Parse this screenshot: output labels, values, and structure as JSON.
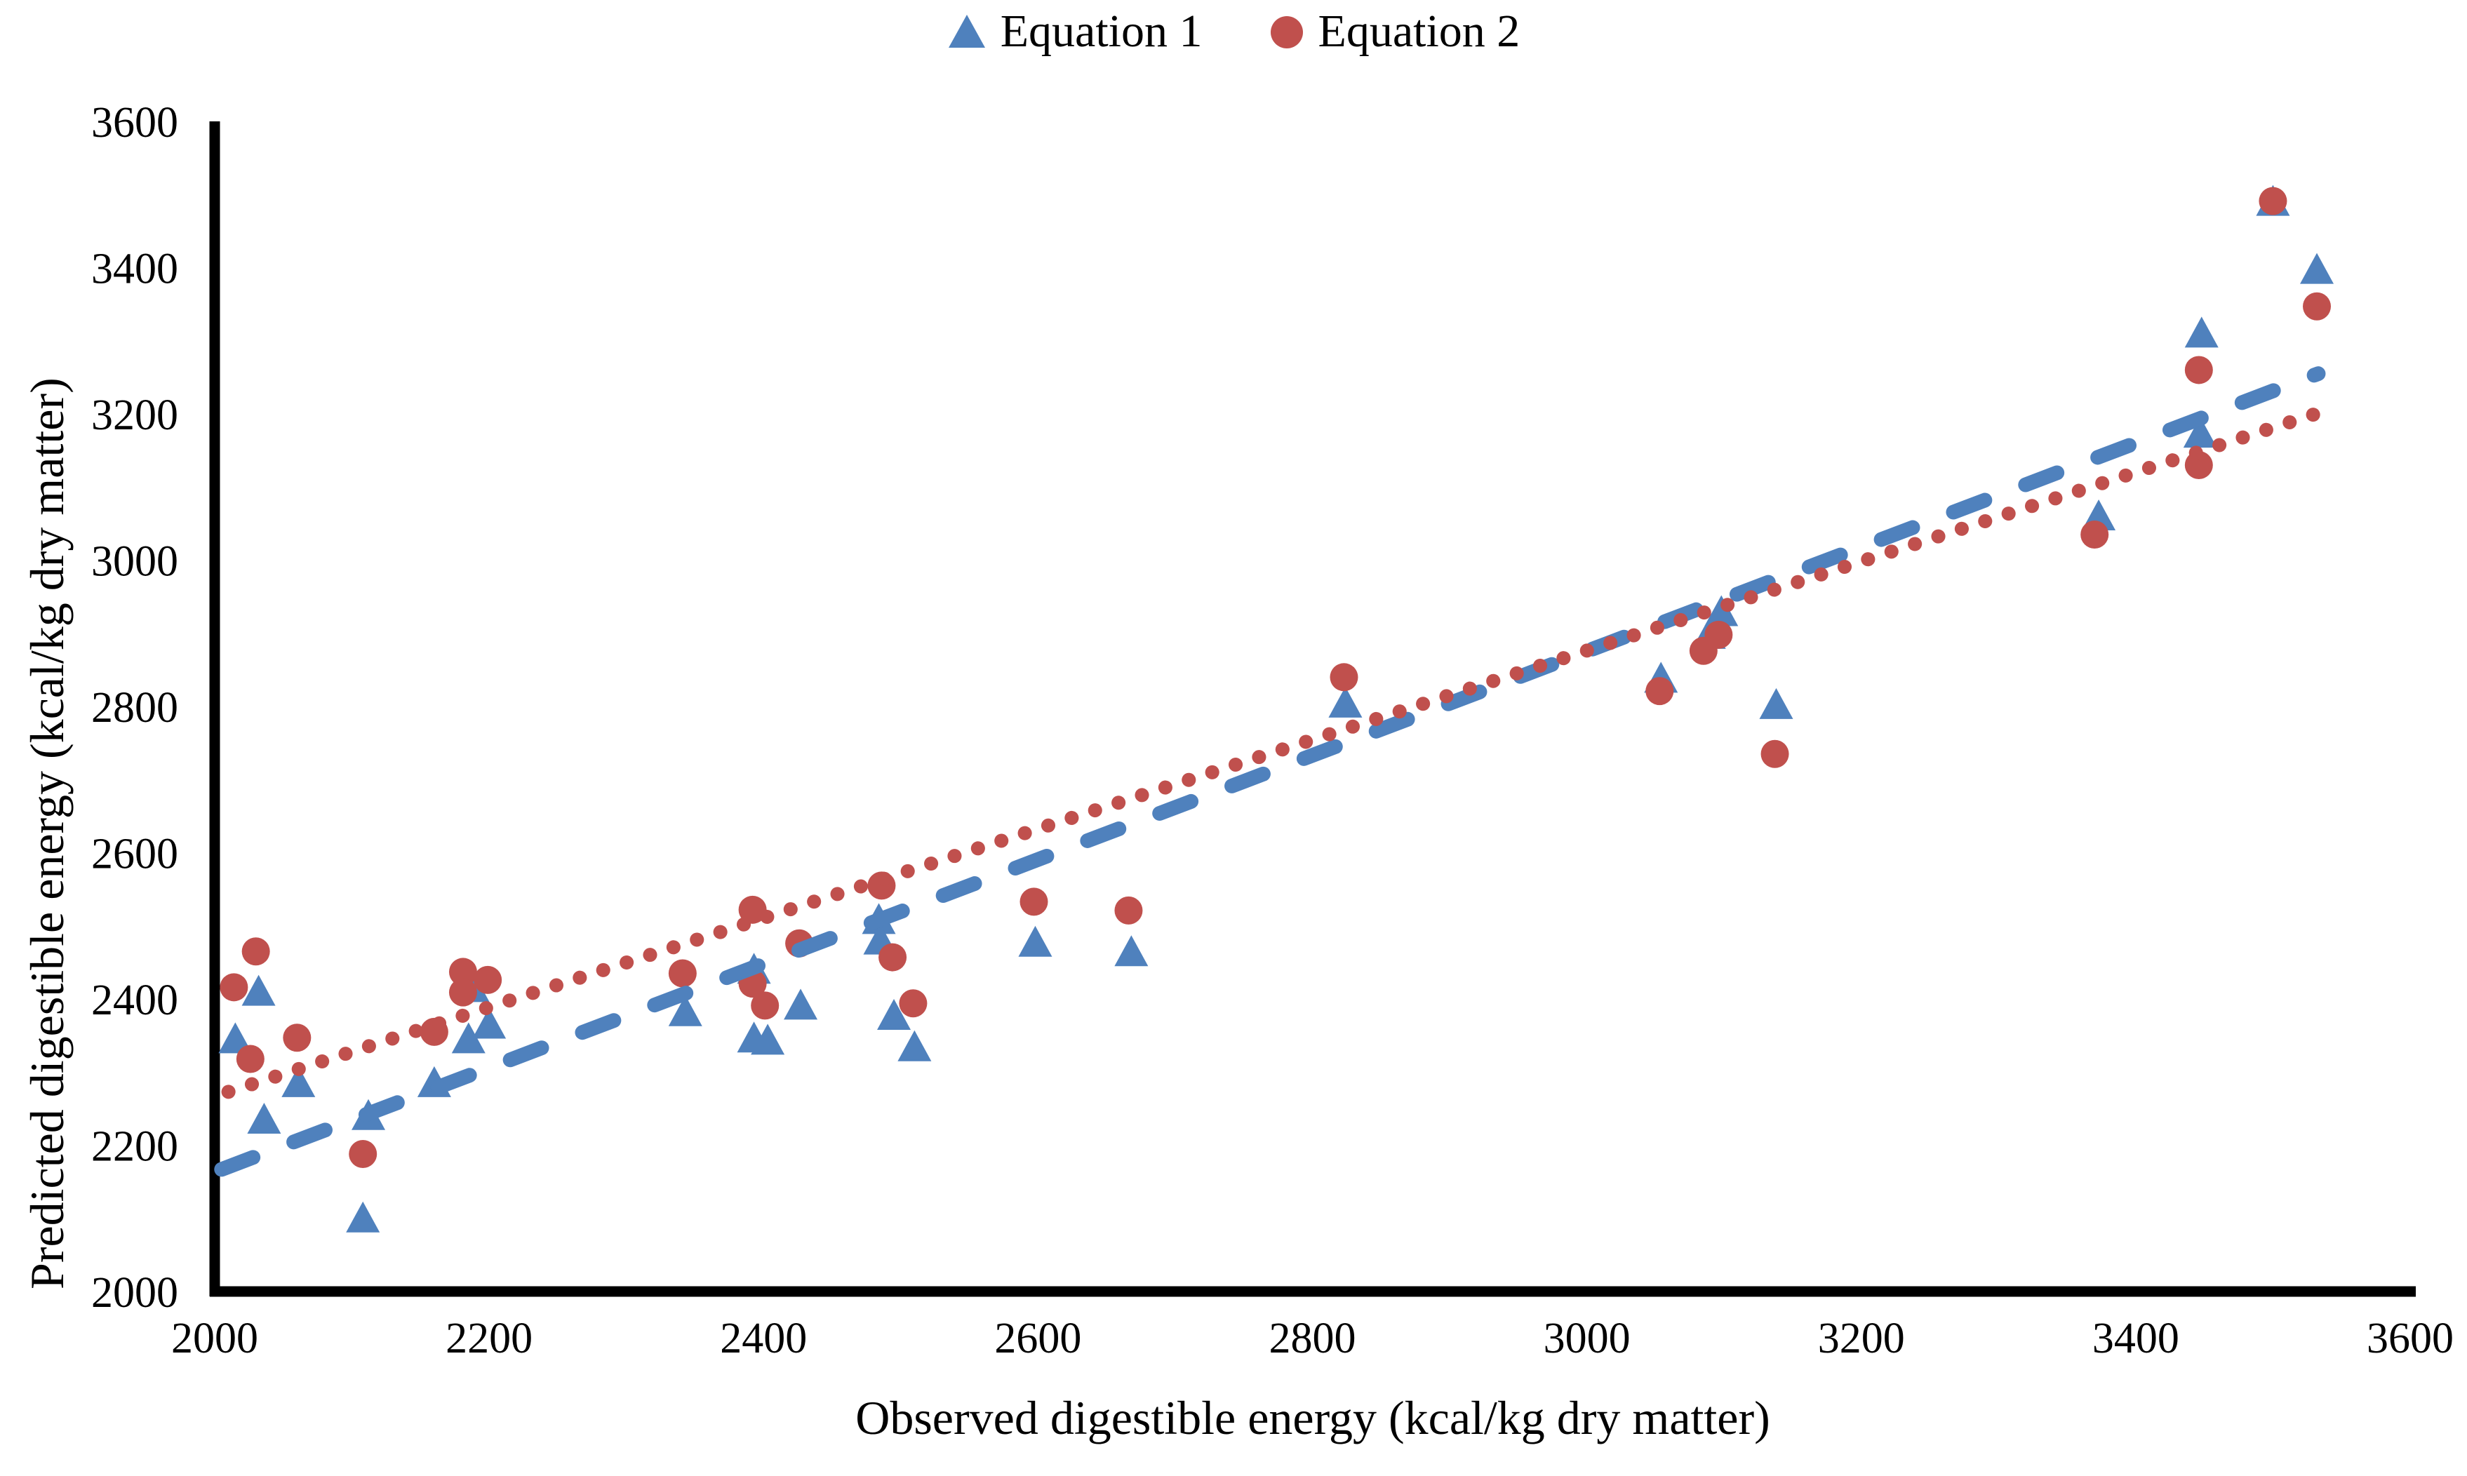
{
  "chart_data": {
    "type": "scatter",
    "title": "",
    "xlabel": "Observed digestible energy (kcal/kg dry matter)",
    "ylabel": "Predicted digestible energy (kcal/kg dry matter)",
    "x_range": [
      2000,
      3600
    ],
    "y_range": [
      2000,
      3600
    ],
    "x_ticks": [
      2000,
      2200,
      2400,
      2600,
      2800,
      3000,
      3200,
      3400,
      3600
    ],
    "y_ticks": [
      2000,
      2200,
      2400,
      2600,
      2800,
      3000,
      3200,
      3400,
      3600
    ],
    "grid": false,
    "legend_position": "top-center",
    "axis_color": "#000000",
    "series": [
      {
        "name": "Equation 1",
        "marker": "triangle",
        "color": "#4f81bd",
        "points": [
          [
            2015,
            2345
          ],
          [
            2032,
            2410
          ],
          [
            2036,
            2235
          ],
          [
            2061,
            2285
          ],
          [
            2108,
            2100
          ],
          [
            2112,
            2240
          ],
          [
            2160,
            2285
          ],
          [
            2185,
            2345
          ],
          [
            2188,
            2415
          ],
          [
            2200,
            2365
          ],
          [
            2343,
            2382
          ],
          [
            2393,
            2346
          ],
          [
            2393,
            2440
          ],
          [
            2403,
            2343
          ],
          [
            2427,
            2391
          ],
          [
            2484,
            2508
          ],
          [
            2485,
            2480
          ],
          [
            2495,
            2377
          ],
          [
            2510,
            2334
          ],
          [
            2598,
            2477
          ],
          [
            2668,
            2464
          ],
          [
            2824,
            2804
          ],
          [
            3054,
            2838
          ],
          [
            3089,
            2898
          ],
          [
            3098,
            2929
          ],
          [
            3138,
            2802
          ],
          [
            3373,
            3060
          ],
          [
            3447,
            3173
          ],
          [
            3448,
            3310
          ],
          [
            3500,
            3490
          ],
          [
            3532,
            3397
          ]
        ]
      },
      {
        "name": "Equation 2",
        "marker": "circle",
        "color": "#c0504d",
        "points": [
          [
            2014,
            2416
          ],
          [
            2026,
            2318
          ],
          [
            2030,
            2465
          ],
          [
            2060,
            2347
          ],
          [
            2108,
            2188
          ],
          [
            2160,
            2355
          ],
          [
            2181,
            2437
          ],
          [
            2181,
            2409
          ],
          [
            2199,
            2426
          ],
          [
            2341,
            2435
          ],
          [
            2392,
            2522
          ],
          [
            2392,
            2421
          ],
          [
            2401,
            2391
          ],
          [
            2426,
            2476
          ],
          [
            2486,
            2555
          ],
          [
            2494,
            2457
          ],
          [
            2509,
            2394
          ],
          [
            2597,
            2533
          ],
          [
            2666,
            2521
          ],
          [
            2823,
            2840
          ],
          [
            3053,
            2821
          ],
          [
            3085,
            2876
          ],
          [
            3096,
            2898
          ],
          [
            3137,
            2735
          ],
          [
            3370,
            3035
          ],
          [
            3446,
            3260
          ],
          [
            3446,
            3130
          ],
          [
            3500,
            3491
          ],
          [
            3532,
            3347
          ]
        ]
      }
    ],
    "trendlines": [
      {
        "series": "Equation 1",
        "style": "dashed",
        "color": "#4f81bd",
        "from": [
          2005,
          2167
        ],
        "to": [
          3533,
          3255
        ]
      },
      {
        "series": "Equation 2",
        "style": "dotted",
        "color": "#c0504d",
        "from": [
          2010,
          2273
        ],
        "to": [
          3531,
          3200
        ]
      }
    ]
  }
}
